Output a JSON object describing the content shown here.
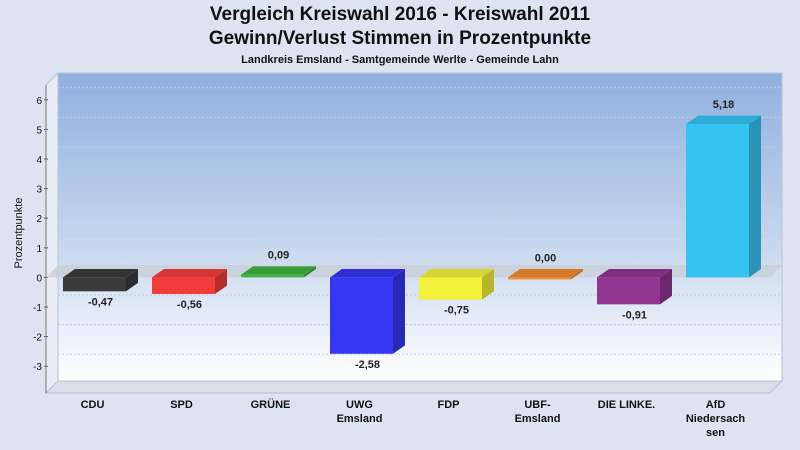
{
  "chart_data": {
    "type": "bar",
    "title": "Vergleich Kreiswahl 2016 - Kreiswahl 2011",
    "subtitle": "Gewinn/Verlust Stimmen in Prozentpunkte",
    "caption": "Landkreis Emsland - Samtgemeinde Werlte - Gemeinde Lahn",
    "ylabel": "Prozentpunkte",
    "xlabel": "",
    "ylim": [
      -3.5,
      6.5
    ],
    "yticks": [
      6,
      5,
      4,
      3,
      2,
      1,
      0,
      -1,
      -2,
      -3
    ],
    "grid": true,
    "categories": [
      [
        "CDU"
      ],
      [
        "SPD"
      ],
      [
        "GRÜNE"
      ],
      [
        "UWG",
        "Emsland"
      ],
      [
        "FDP"
      ],
      [
        "UBF-",
        "Emsland"
      ],
      [
        "DIE LINKE."
      ],
      [
        "AfD",
        "Niedersach",
        "sen"
      ]
    ],
    "values": [
      -0.47,
      -0.56,
      0.09,
      -2.58,
      -0.75,
      0.0,
      -0.91,
      5.18
    ],
    "value_labels": [
      "-0,47",
      "-0,56",
      "0,09",
      "-2,58",
      "-0,75",
      "0,00",
      "-0,91",
      "5,18"
    ],
    "colors": [
      "#3a3a3a",
      "#f23c3c",
      "#3fb23f",
      "#3535f2",
      "#f2f23a",
      "#f28c2c",
      "#913591",
      "#35c4f2"
    ]
  }
}
